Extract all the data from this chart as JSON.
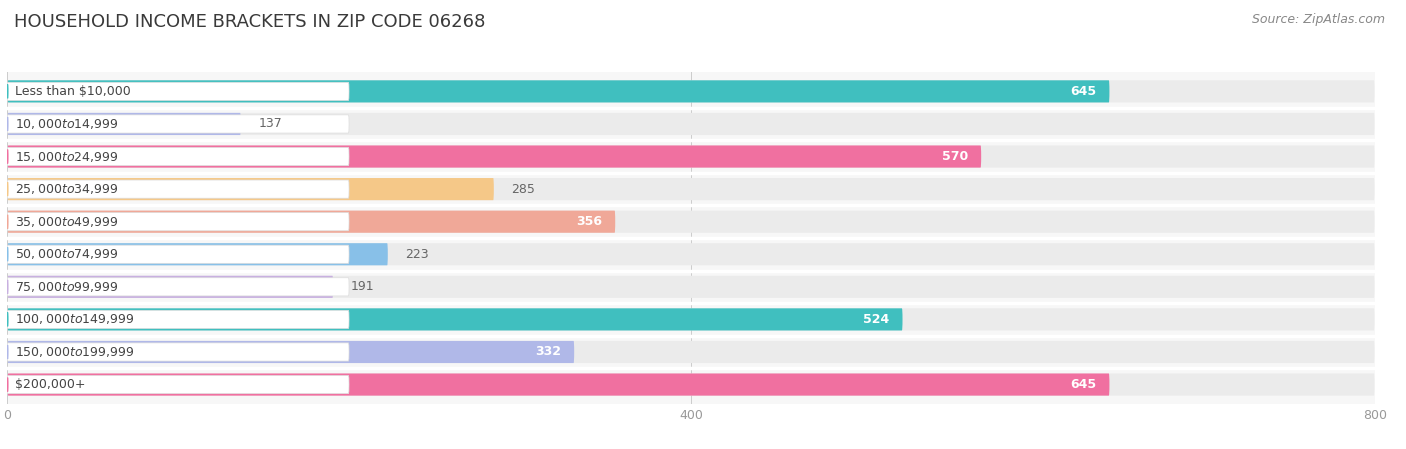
{
  "title": "HOUSEHOLD INCOME BRACKETS IN ZIP CODE 06268",
  "source": "Source: ZipAtlas.com",
  "categories": [
    "Less than $10,000",
    "$10,000 to $14,999",
    "$15,000 to $24,999",
    "$25,000 to $34,999",
    "$35,000 to $49,999",
    "$50,000 to $74,999",
    "$75,000 to $99,999",
    "$100,000 to $149,999",
    "$150,000 to $199,999",
    "$200,000+"
  ],
  "values": [
    645,
    137,
    570,
    285,
    356,
    223,
    191,
    524,
    332,
    645
  ],
  "colors": [
    "#40bfbf",
    "#b0b8e8",
    "#f070a0",
    "#f5c888",
    "#f0a898",
    "#88c0e8",
    "#c8b0e0",
    "#40bfbf",
    "#b0b8e8",
    "#f070a0"
  ],
  "bar_bg_color": "#ebebeb",
  "background_color": "#ffffff",
  "plot_bg_color": "#f7f7f7",
  "xlim_max": 800,
  "xticks": [
    0,
    400,
    800
  ],
  "title_fontsize": 13,
  "source_fontsize": 9,
  "bar_label_fontsize": 9,
  "category_fontsize": 9,
  "bar_height": 0.68,
  "bar_spacing": 1.0,
  "inside_label_threshold": 300
}
